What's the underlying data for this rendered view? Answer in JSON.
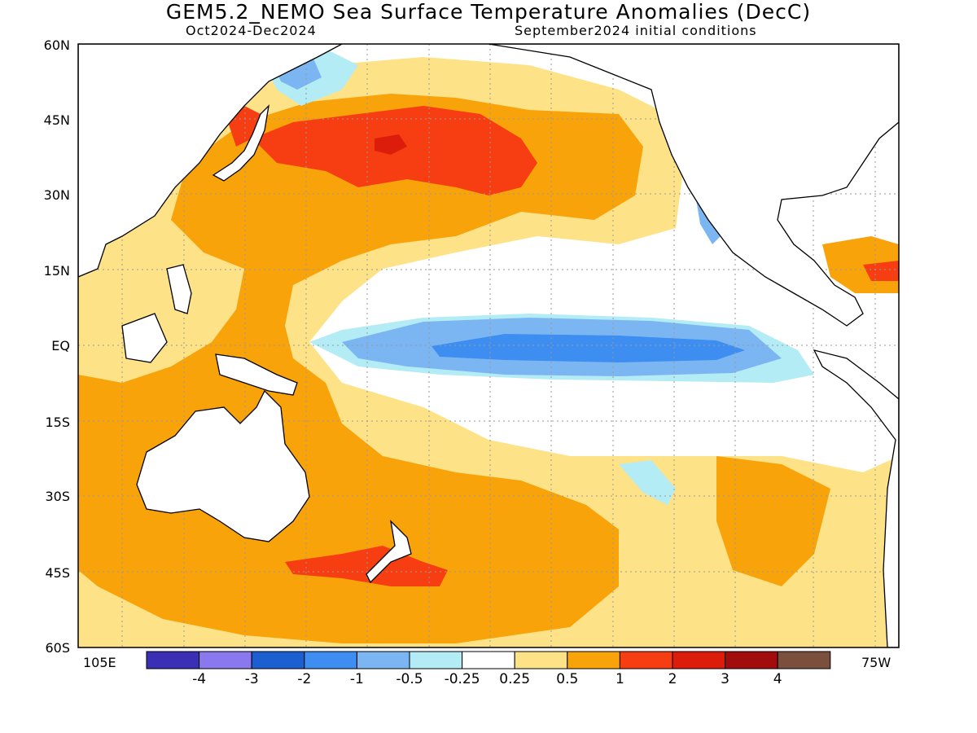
{
  "title": "GEM5.2_NEMO Sea Surface Temperature Anomalies (DecC)",
  "subtitle_left": "Oct2024-Dec2024",
  "subtitle_right": "September2024 initial conditions",
  "lat_labels": [
    "60N",
    "45N",
    "30N",
    "15N",
    "EQ",
    "15S",
    "30S",
    "45S",
    "60S"
  ],
  "lon_labels": {
    "west": "105E",
    "east": "75W"
  },
  "colorbar": {
    "labels": [
      "-4",
      "-3",
      "-2",
      "-1",
      "-0.5",
      "-0.25",
      "0.25",
      "0.5",
      "1",
      "2",
      "3",
      "4"
    ],
    "colors": [
      "#3b2fb5",
      "#8a78ee",
      "#1c5fd0",
      "#3d8ef0",
      "#7cb6f2",
      "#b3ecf5",
      "#ffffff",
      "#fde287",
      "#f9a30a",
      "#f73e12",
      "#dd1d0c",
      "#a30c0c",
      "#7b4f3d"
    ]
  },
  "colors": {
    "ocean_neutral": "#ffffff",
    "land": "#ffffff",
    "coast": "#000000",
    "grid": "#999999"
  }
}
